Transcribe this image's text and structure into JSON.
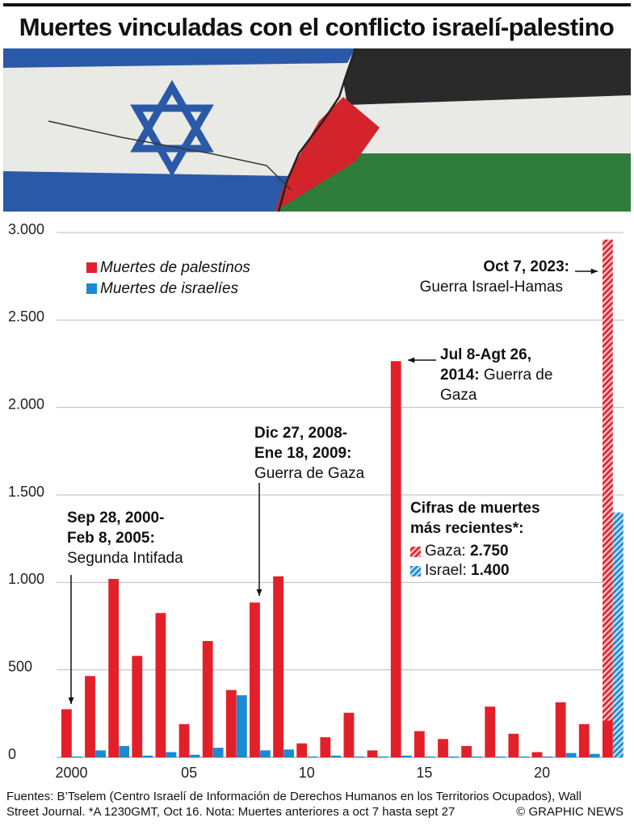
{
  "chart_data": {
    "type": "bar",
    "title": "Muertes vinculadas con el conflicto israelí-palestino",
    "categories": [
      "2000",
      null,
      null,
      null,
      null,
      "05",
      null,
      null,
      null,
      null,
      "10",
      null,
      null,
      null,
      null,
      "15",
      null,
      null,
      null,
      null,
      "20",
      null,
      null,
      null
    ],
    "series": [
      {
        "name": "Muertes de palestinos",
        "color": "#e3202a",
        "values": [
          275,
          465,
          1020,
          580,
          825,
          190,
          665,
          385,
          885,
          1035,
          80,
          115,
          255,
          40,
          2265,
          150,
          105,
          65,
          290,
          135,
          30,
          315,
          190,
          210
        ]
      },
      {
        "name": "Muertes de israelíes",
        "color": "#1a8ad4",
        "values": [
          5,
          40,
          65,
          10,
          30,
          15,
          55,
          355,
          40,
          45,
          5,
          10,
          5,
          5,
          10,
          5,
          5,
          5,
          5,
          5,
          5,
          25,
          20,
          null
        ]
      }
    ],
    "recent": {
      "title": [
        "Cifras de muertes",
        "más recientes*:"
      ],
      "items": [
        {
          "name": "Gaza:",
          "value": 2750,
          "value_label": "2.750",
          "color": "#e3202a"
        },
        {
          "name": "Israel:",
          "value": 1400,
          "value_label": "1.400",
          "color": "#1a8ad4"
        }
      ]
    },
    "ylim": [
      0,
      3000
    ],
    "yticks": [
      0,
      500,
      {
        "value": 1000,
        "label": "1.000"
      },
      {
        "value": 1500,
        "label": "1.500"
      },
      {
        "value": 2000,
        "label": "2.000"
      },
      {
        "value": 2500,
        "label": "2.500"
      },
      {
        "value": 3000,
        "label": "3.000"
      }
    ],
    "grid": true,
    "annotations": [
      {
        "bold": [
          "Sep 28, 2000-",
          "Feb 8, 2005:"
        ],
        "text": [
          "Segunda Intifada"
        ]
      },
      {
        "bold": [
          "Dic 27, 2008-",
          "Ene 18, 2009:"
        ],
        "text": [
          "Guerra de Gaza"
        ]
      },
      {
        "bold": [
          "Jul 8-Agt 26,",
          "2014:"
        ],
        "text": [
          "Guerra de",
          "Gaza"
        ]
      },
      {
        "bold": [
          "Oct 7, 2023:"
        ],
        "text": [
          "Guerra Israel-Hamas"
        ]
      }
    ],
    "footer": [
      "Fuentes: B’Tselem (Centro Israelí de Información de Derechos Humanos en los Territorios Ocupados), Wall",
      "Street Journal. *A 1230GMT, Oct 16. Nota: Muertes anteriores a oct 7 hasta sept 27"
    ],
    "credit": "© GRAPHIC NEWS"
  }
}
